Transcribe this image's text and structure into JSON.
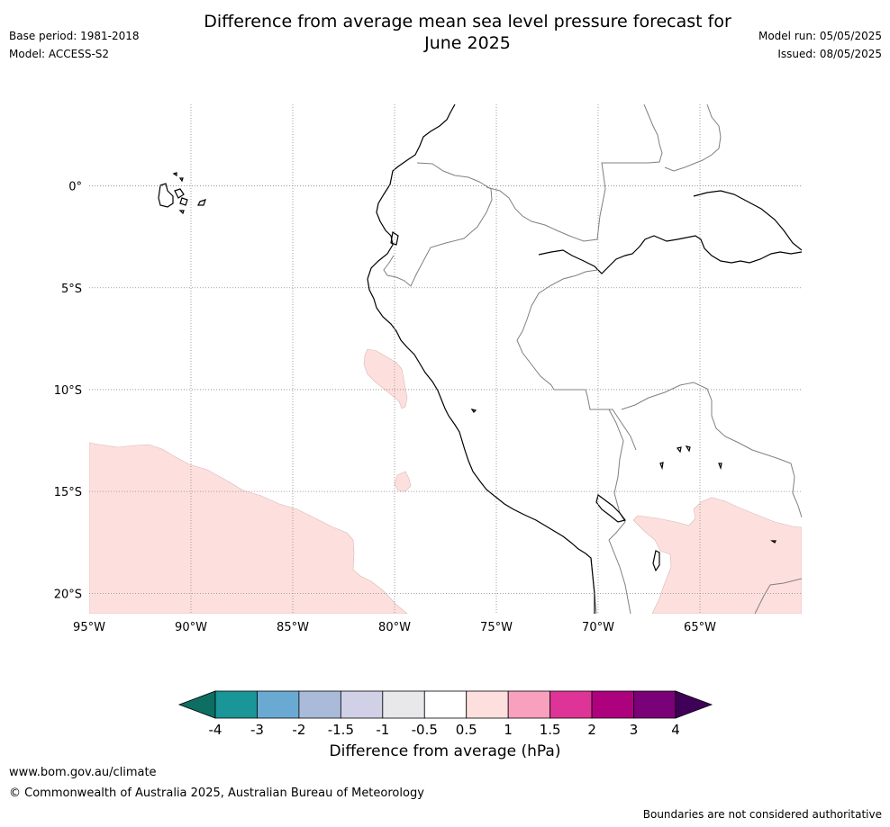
{
  "title_line1": "Difference from average mean sea level pressure forecast for",
  "title_line2": "June 2025",
  "meta_left": {
    "base_period": "Base period: 1981-2018",
    "model": "Model: ACCESS-S2"
  },
  "meta_right": {
    "model_run": "Model run: 05/05/2025",
    "issued": "Issued: 08/05/2025"
  },
  "map": {
    "lon_range": [
      -95,
      -60
    ],
    "lat_range": [
      -21,
      4
    ],
    "lat_ticks": [
      {
        "value": 0,
        "label": "0°"
      },
      {
        "value": -5,
        "label": "5°S"
      },
      {
        "value": -10,
        "label": "10°S"
      },
      {
        "value": -15,
        "label": "15°S"
      },
      {
        "value": -20,
        "label": "20°S"
      }
    ],
    "lon_ticks": [
      {
        "value": -95,
        "label": "95°W"
      },
      {
        "value": -90,
        "label": "90°W"
      },
      {
        "value": -85,
        "label": "85°W"
      },
      {
        "value": -80,
        "label": "80°W"
      },
      {
        "value": -75,
        "label": "75°W"
      },
      {
        "value": -70,
        "label": "70°W"
      },
      {
        "value": -65,
        "label": "65°W"
      }
    ],
    "grid": "dotted",
    "anomaly_fill_color": "#fde0de",
    "coast_color": "#000000",
    "border_color": "#808080"
  },
  "colorbar": {
    "label": "Difference from average (hPa)",
    "tick_labels": [
      "-4",
      "-3",
      "-2",
      "-1.5",
      "-1",
      "-0.5",
      "0.5",
      "1",
      "1.5",
      "2",
      "3",
      "4"
    ],
    "under_color": "#0d6e63",
    "over_color": "#3f0057",
    "colors": [
      "#1a9598",
      "#6aaad2",
      "#a9bbd9",
      "#d0d1e6",
      "#e8e7ea",
      "#ffffff",
      "#fde0de",
      "#f9a0be",
      "#de3498",
      "#ae017e",
      "#7a0177"
    ]
  },
  "footer": {
    "url": "www.bom.gov.au/climate",
    "copyright": "© Commonwealth of Australia 2025, Australian Bureau of Meteorology",
    "note": "Boundaries are not considered authoritative"
  }
}
